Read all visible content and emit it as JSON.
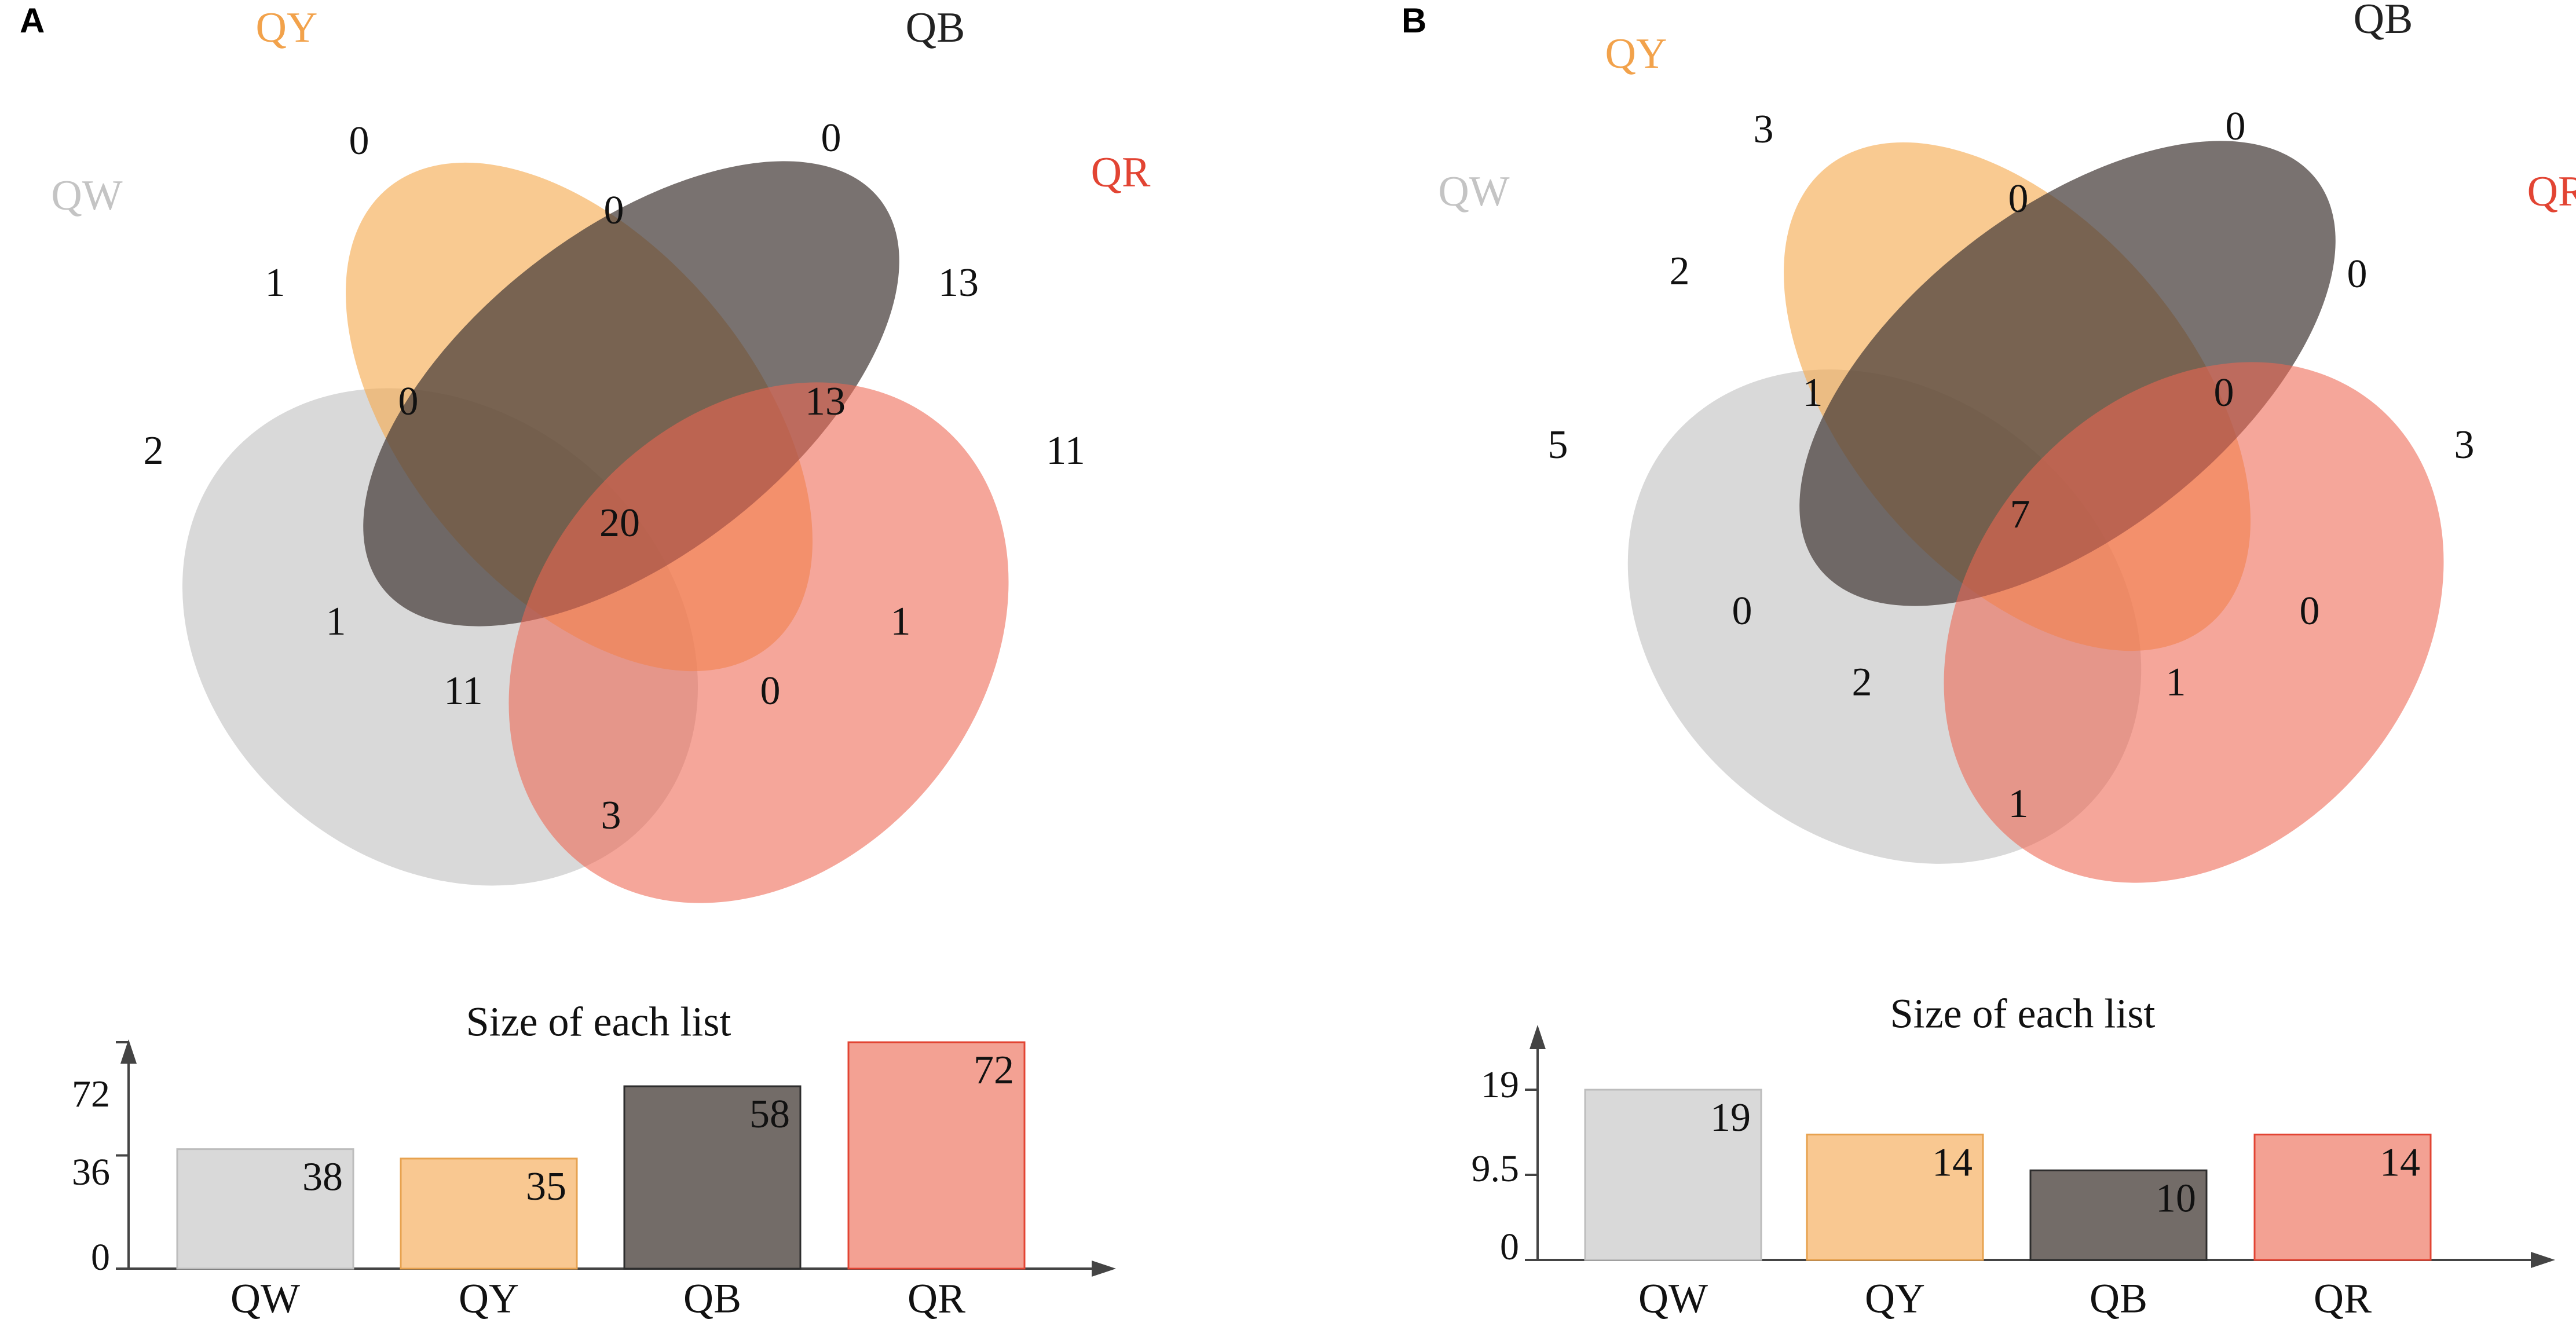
{
  "colors": {
    "QW": "#b9b9b9",
    "QY": "#f5a94e",
    "QB": "#453c39",
    "QR": "#ee6551",
    "QW_label": "#c4c4c4",
    "QY_label": "#f2a24b",
    "QB_label": "#222222",
    "QR_label": "#e24433",
    "QW_bar": "#d9d9d9",
    "QY_bar": "#f9c891",
    "QB_bar": "#736c68",
    "QR_bar": "#f3a193",
    "QW_bar_border": "#bdbdbd",
    "QY_bar_border": "#e7a24f",
    "QB_bar_border": "#2d2d2d",
    "QR_bar_border": "#e24433",
    "axis": "#444444",
    "text": "#111111"
  },
  "chart_data": [
    {
      "panel": "A",
      "type": "venn",
      "sets": [
        "QW",
        "QY",
        "QB",
        "QR"
      ],
      "regions": {
        "QW": 2,
        "QY": 0,
        "QB": 0,
        "QR": 11,
        "QW&QY": 1,
        "QY&QB": 0,
        "QB&QR": 13,
        "QW&QB": 1,
        "QW&QR": 3,
        "QY&QR": 1,
        "QW&QY&QB": 0,
        "QY&QB&QR": 13,
        "QW&QB&QR": 11,
        "QW&QY&QR": 0,
        "QW&QY&QB&QR": 20
      },
      "bar": {
        "type": "bar",
        "title": "Size of each list",
        "categories": [
          "QW",
          "QY",
          "QB",
          "QR"
        ],
        "values": [
          38,
          35,
          58,
          72
        ],
        "value_labels": [
          "38",
          "35",
          "58",
          "72"
        ],
        "ytick_labels": [
          "72",
          "36",
          "0"
        ],
        "ylim": [
          0,
          72
        ]
      }
    },
    {
      "panel": "B",
      "type": "venn",
      "sets": [
        "QW",
        "QY",
        "QB",
        "QR"
      ],
      "regions": {
        "QW": 5,
        "QY": 3,
        "QB": 0,
        "QR": 3,
        "QW&QY": 2,
        "QY&QB": 0,
        "QB&QR": 0,
        "QW&QB": 0,
        "QW&QR": 1,
        "QY&QR": 0,
        "QW&QY&QB": 1,
        "QY&QB&QR": 0,
        "QW&QB&QR": 2,
        "QW&QY&QR": 1,
        "QW&QY&QB&QR": 7
      },
      "bar": {
        "type": "bar",
        "title": "Size of each list",
        "categories": [
          "QW",
          "QY",
          "QB",
          "QR"
        ],
        "values": [
          19,
          14,
          10,
          14
        ],
        "value_labels": [
          "19",
          "14",
          "10",
          "14"
        ],
        "ytick_labels": [
          "19",
          "9.5",
          "0"
        ],
        "ylim": [
          0,
          19
        ]
      }
    }
  ]
}
